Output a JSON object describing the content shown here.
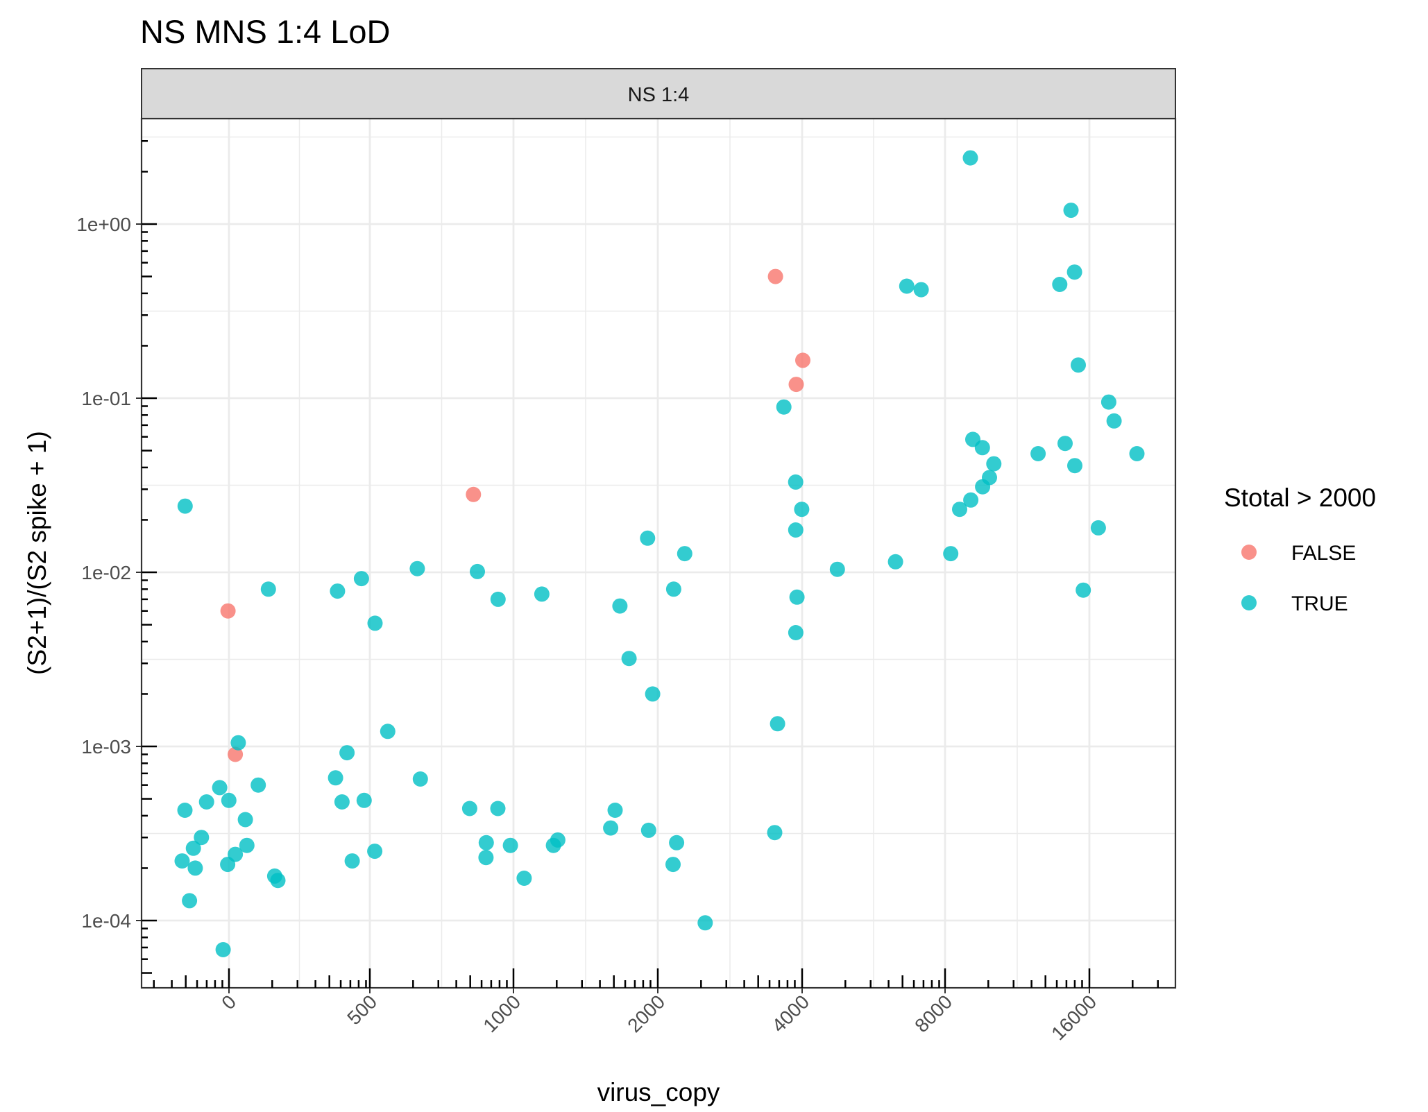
{
  "chart_data": {
    "type": "scatter",
    "title": "NS MNS 1:4 LoD",
    "facet_label": "NS 1:4",
    "xlabel": "virus_copy",
    "ylabel": "(S2+1)/(S2 spike + 1)",
    "x_tick_labels": [
      "0",
      "500",
      "1000",
      "2000",
      "4000",
      "8000",
      "16000"
    ],
    "y_tick_labels": [
      "1e-04",
      "1e-03",
      "1e-02",
      "1e-01",
      "1e+00"
    ],
    "y_scale": "log10",
    "x_scale": "pseudo-log (jittered by dose group)",
    "grid": true,
    "legend": {
      "title": "Stotal > 2000",
      "position": "right",
      "entries": [
        {
          "label": "FALSE",
          "color": "#F8766D"
        },
        {
          "label": "TRUE",
          "color": "#00BFC4"
        }
      ]
    },
    "series": [
      {
        "name": "FALSE",
        "color": "#F8766D",
        "points": [
          {
            "x": 0,
            "y": 0.006
          },
          {
            "x": 0,
            "y": 0.0009
          },
          {
            "x": 1000,
            "y": 0.028
          },
          {
            "x": 4000,
            "y": 0.5
          },
          {
            "x": 4000,
            "y": 0.12
          },
          {
            "x": 4000,
            "y": 0.165
          }
        ]
      },
      {
        "name": "TRUE",
        "color": "#00BFC4",
        "points": [
          {
            "x": 0,
            "y": 0.024
          },
          {
            "x": 0,
            "y": 0.008
          },
          {
            "x": 0,
            "y": 0.00105
          },
          {
            "x": 0,
            "y": 0.00058
          },
          {
            "x": 0,
            "y": 0.00048
          },
          {
            "x": 0,
            "y": 0.0006
          },
          {
            "x": 0,
            "y": 0.00038
          },
          {
            "x": 0,
            "y": 0.00043
          },
          {
            "x": 0,
            "y": 0.00049
          },
          {
            "x": 0,
            "y": 0.0003
          },
          {
            "x": 0,
            "y": 0.00027
          },
          {
            "x": 0,
            "y": 0.00026
          },
          {
            "x": 0,
            "y": 0.00024
          },
          {
            "x": 0,
            "y": 0.00021
          },
          {
            "x": 0,
            "y": 0.0002
          },
          {
            "x": 0,
            "y": 0.00022
          },
          {
            "x": 0,
            "y": 0.00018
          },
          {
            "x": 0,
            "y": 0.00017
          },
          {
            "x": 0,
            "y": 0.00013
          },
          {
            "x": 0,
            "y": 6.8e-05
          },
          {
            "x": 500,
            "y": 0.0105
          },
          {
            "x": 500,
            "y": 0.0078
          },
          {
            "x": 500,
            "y": 0.0092
          },
          {
            "x": 500,
            "y": 0.0051
          },
          {
            "x": 500,
            "y": 0.00122
          },
          {
            "x": 500,
            "y": 0.00092
          },
          {
            "x": 500,
            "y": 0.00066
          },
          {
            "x": 500,
            "y": 0.00065
          },
          {
            "x": 500,
            "y": 0.00049
          },
          {
            "x": 500,
            "y": 0.00048
          },
          {
            "x": 500,
            "y": 0.00025
          },
          {
            "x": 500,
            "y": 0.00022
          },
          {
            "x": 1000,
            "y": 0.0101
          },
          {
            "x": 1000,
            "y": 0.0075
          },
          {
            "x": 1000,
            "y": 0.007
          },
          {
            "x": 1000,
            "y": 0.00044
          },
          {
            "x": 1000,
            "y": 0.00044
          },
          {
            "x": 1000,
            "y": 0.00029
          },
          {
            "x": 1000,
            "y": 0.00028
          },
          {
            "x": 1000,
            "y": 0.00027
          },
          {
            "x": 1000,
            "y": 0.00027
          },
          {
            "x": 1000,
            "y": 0.00023
          },
          {
            "x": 1000,
            "y": 0.000175
          },
          {
            "x": 2000,
            "y": 0.0157
          },
          {
            "x": 2000,
            "y": 0.0128
          },
          {
            "x": 2000,
            "y": 0.008
          },
          {
            "x": 2000,
            "y": 0.0064
          },
          {
            "x": 2000,
            "y": 0.0032
          },
          {
            "x": 2000,
            "y": 0.002
          },
          {
            "x": 2000,
            "y": 0.00043
          },
          {
            "x": 2000,
            "y": 0.00034
          },
          {
            "x": 2000,
            "y": 0.00033
          },
          {
            "x": 2000,
            "y": 0.00028
          },
          {
            "x": 2000,
            "y": 0.00021
          },
          {
            "x": 2000,
            "y": 9.7e-05
          },
          {
            "x": 4000,
            "y": 0.089
          },
          {
            "x": 4000,
            "y": 0.033
          },
          {
            "x": 4000,
            "y": 0.023
          },
          {
            "x": 4000,
            "y": 0.0175
          },
          {
            "x": 4000,
            "y": 0.0104
          },
          {
            "x": 4000,
            "y": 0.0072
          },
          {
            "x": 4000,
            "y": 0.0045
          },
          {
            "x": 4000,
            "y": 0.00135
          },
          {
            "x": 4000,
            "y": 0.00032
          },
          {
            "x": 8000,
            "y": 2.4
          },
          {
            "x": 8000,
            "y": 0.44
          },
          {
            "x": 8000,
            "y": 0.42
          },
          {
            "x": 8000,
            "y": 0.058
          },
          {
            "x": 8000,
            "y": 0.052
          },
          {
            "x": 8000,
            "y": 0.042
          },
          {
            "x": 8000,
            "y": 0.035
          },
          {
            "x": 8000,
            "y": 0.031
          },
          {
            "x": 8000,
            "y": 0.026
          },
          {
            "x": 8000,
            "y": 0.023
          },
          {
            "x": 8000,
            "y": 0.0128
          },
          {
            "x": 8000,
            "y": 0.0115
          },
          {
            "x": 16000,
            "y": 1.2
          },
          {
            "x": 16000,
            "y": 0.53
          },
          {
            "x": 16000,
            "y": 0.45
          },
          {
            "x": 16000,
            "y": 0.155
          },
          {
            "x": 16000,
            "y": 0.095
          },
          {
            "x": 16000,
            "y": 0.074
          },
          {
            "x": 16000,
            "y": 0.055
          },
          {
            "x": 16000,
            "y": 0.048
          },
          {
            "x": 16000,
            "y": 0.048
          },
          {
            "x": 16000,
            "y": 0.041
          },
          {
            "x": 16000,
            "y": 0.018
          },
          {
            "x": 16000,
            "y": 0.0079
          }
        ]
      }
    ]
  }
}
